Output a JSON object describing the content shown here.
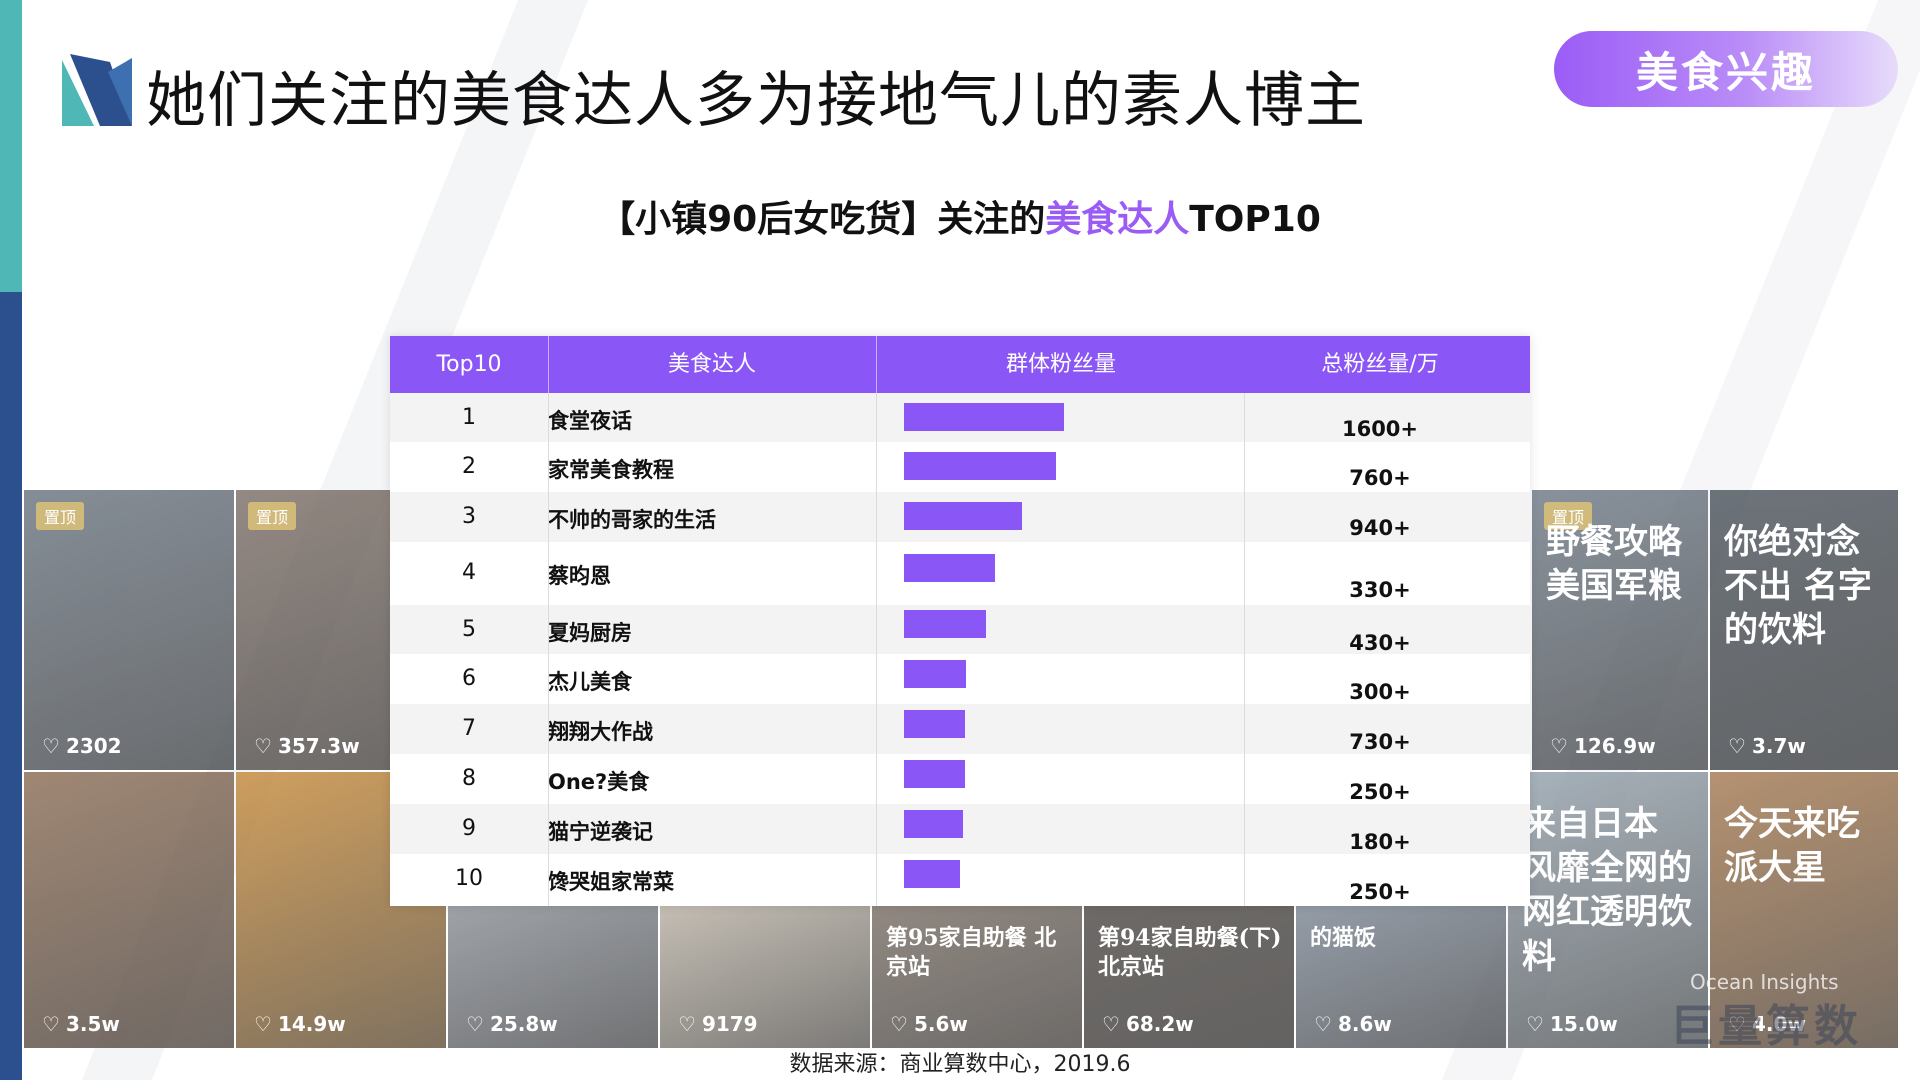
{
  "header": {
    "title": "她们关注的美食达人多为接地气儿的素人博主",
    "tag": "美食兴趣",
    "subtitle_prefix": "【小镇90后女吃货】关注的",
    "subtitle_highlight": "美食达人",
    "subtitle_suffix": "TOP10"
  },
  "colors": {
    "accent": "#8b56f6",
    "highlight": "#9b5cf6",
    "strip_top": "#4fb7b5",
    "strip_bottom": "#2c4f8e"
  },
  "table": {
    "columns": [
      "Top10",
      "美食达人",
      "群体粉丝量",
      "总粉丝量/万"
    ],
    "rows": [
      {
        "rank": "1",
        "name": "食堂夜话",
        "group_fans_ratio": 1.0,
        "total": "1600+"
      },
      {
        "rank": "2",
        "name": "家常美食教程",
        "group_fans_ratio": 0.95,
        "total": "760+"
      },
      {
        "rank": "3",
        "name": "不帅的哥家的生活",
        "group_fans_ratio": 0.74,
        "total": "940+"
      },
      {
        "rank": "4",
        "name": "蔡昀恩",
        "group_fans_ratio": 0.57,
        "total": "330+"
      },
      {
        "rank": "5",
        "name": "夏妈厨房",
        "group_fans_ratio": 0.51,
        "total": "430+"
      },
      {
        "rank": "6",
        "name": "杰儿美食",
        "group_fans_ratio": 0.39,
        "total": "300+"
      },
      {
        "rank": "7",
        "name": "翔翔大作战",
        "group_fans_ratio": 0.38,
        "total": "730+"
      },
      {
        "rank": "8",
        "name": "One?美食",
        "group_fans_ratio": 0.38,
        "total": "250+"
      },
      {
        "rank": "9",
        "name": "猫宁逆袭记",
        "group_fans_ratio": 0.37,
        "total": "180+"
      },
      {
        "rank": "10",
        "name": "馋哭姐家常菜",
        "group_fans_ratio": 0.35,
        "total": "250+"
      }
    ]
  },
  "background_tiles": [
    {
      "pin": "置顶",
      "text": "",
      "likes": "2302"
    },
    {
      "pin": "置顶",
      "text": "",
      "likes": "357.3w"
    },
    {
      "pin": "",
      "text": "",
      "likes": "3.5w"
    },
    {
      "pin": "",
      "text": "",
      "likes": "14.9w"
    },
    {
      "pin": "",
      "text": "",
      "likes": "25.8w"
    },
    {
      "pin": "",
      "text": "",
      "likes": "9179"
    },
    {
      "pin": "",
      "text": "第95家自助餐 北京站",
      "likes": "5.6w"
    },
    {
      "pin": "",
      "text": "第94家自助餐(下) 北京站",
      "likes": "68.2w"
    },
    {
      "pin": "",
      "text": "的猫饭",
      "likes": "8.6w"
    },
    {
      "pin": "",
      "text": "来自日本 风靡全网的 网红透明饮料",
      "likes": "15.0w"
    },
    {
      "pin": "",
      "text": "今天来吃 派大星",
      "likes": "4.0w"
    },
    {
      "pin": "置顶",
      "text": "野餐攻略 美国军粮",
      "likes": "126.9w"
    },
    {
      "pin": "",
      "text": "你绝对念不出 名字的饮料",
      "likes": "3.7w"
    }
  ],
  "watermark": "Ocean Insights",
  "brand": "巨量算数",
  "source": "数据来源：商业算数中心，2019.6"
}
